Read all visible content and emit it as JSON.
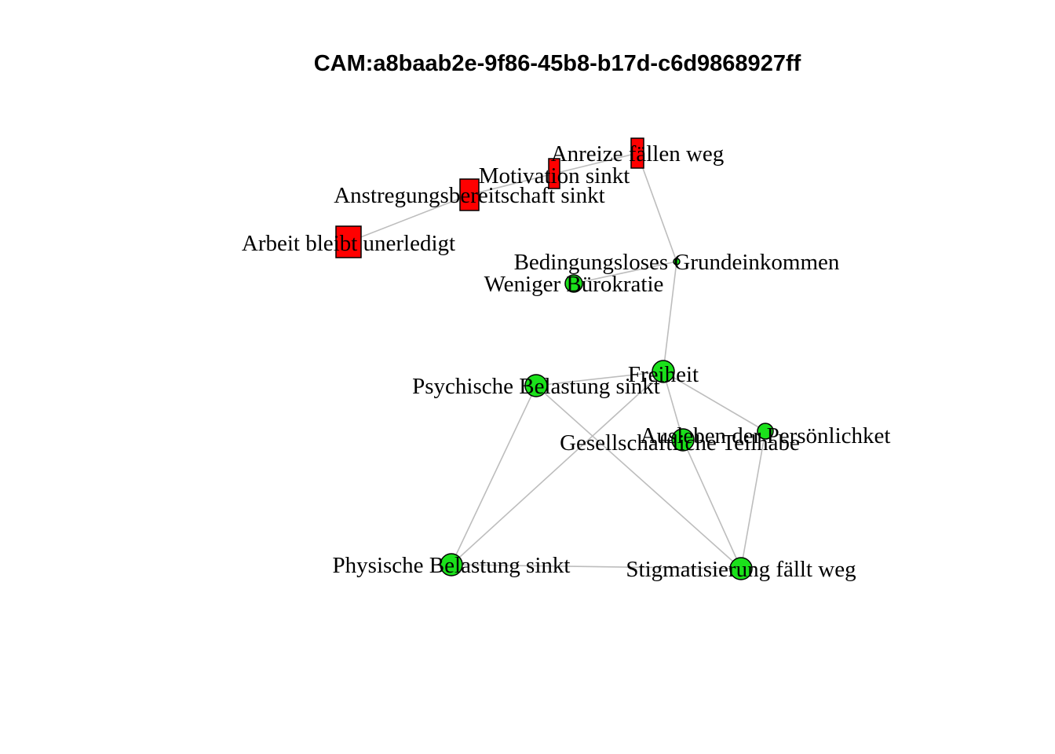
{
  "title": "CAM:a8baab2e-9f86-45b8-b17d-c6d9868927ff",
  "colors": {
    "positive": "#1be11b",
    "negative": "#ff0000",
    "edge": "#bdbdbd"
  },
  "nodes": [
    {
      "id": "anreize",
      "label": "Anreize fällen weg",
      "valence": "negative",
      "shape": "rect"
    },
    {
      "id": "motivation",
      "label": "Motivation sinkt",
      "valence": "negative",
      "shape": "rect"
    },
    {
      "id": "anstrengung",
      "label": "Anstregungsbereitschaft sinkt",
      "valence": "negative",
      "shape": "rect"
    },
    {
      "id": "arbeit",
      "label": "Arbeit bleibt unerledigt",
      "valence": "negative",
      "shape": "rect"
    },
    {
      "id": "bge",
      "label": "Bedingungsloses Grundeinkommen",
      "valence": "positive",
      "shape": "circle"
    },
    {
      "id": "buerokratie",
      "label": "Weniger Bürokratie",
      "valence": "positive",
      "shape": "circle"
    },
    {
      "id": "freiheit",
      "label": "Freiheit",
      "valence": "positive",
      "shape": "circle"
    },
    {
      "id": "psychisch",
      "label": "Psychische Belastung sinkt",
      "valence": "positive",
      "shape": "circle"
    },
    {
      "id": "ausleben",
      "label": "Ausleben der Persönlichket",
      "valence": "positive",
      "shape": "circle"
    },
    {
      "id": "teilhabe",
      "label": "Gesellschaftliche Teilhabe",
      "valence": "positive",
      "shape": "circle"
    },
    {
      "id": "physisch",
      "label": "Physische Belastung sinkt",
      "valence": "positive",
      "shape": "circle"
    },
    {
      "id": "stigma",
      "label": "Stigmatisierung fällt weg",
      "valence": "positive",
      "shape": "circle"
    }
  ],
  "edges": [
    [
      "arbeit",
      "anstrengung"
    ],
    [
      "anstrengung",
      "motivation"
    ],
    [
      "motivation",
      "anreize"
    ],
    [
      "anreize",
      "bge"
    ],
    [
      "bge",
      "buerokratie"
    ],
    [
      "bge",
      "freiheit"
    ],
    [
      "freiheit",
      "psychisch"
    ],
    [
      "freiheit",
      "teilhabe"
    ],
    [
      "freiheit",
      "ausleben"
    ],
    [
      "freiheit",
      "physisch"
    ],
    [
      "psychisch",
      "physisch"
    ],
    [
      "psychisch",
      "stigma"
    ],
    [
      "teilhabe",
      "stigma"
    ],
    [
      "ausleben",
      "stigma"
    ],
    [
      "physisch",
      "stigma"
    ]
  ]
}
